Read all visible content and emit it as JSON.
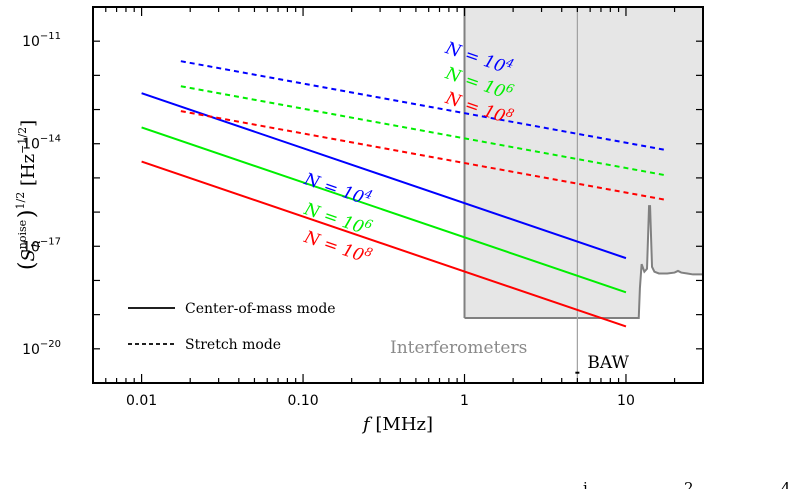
{
  "chart_data": {
    "type": "line",
    "title": "",
    "xlabel": "f [MHz]",
    "ylabel": "(S_h^noise)^1/2 [Hz^-1/2]",
    "x_scale": "log",
    "y_scale": "log",
    "xlim": [
      0.005,
      30
    ],
    "ylim": [
      1e-21,
      1e-10
    ],
    "x_ticks": [
      {
        "value": 0.01,
        "label": "0.01"
      },
      {
        "value": 0.1,
        "label": "0.10"
      },
      {
        "value": 1,
        "label": "1"
      },
      {
        "value": 10,
        "label": "10"
      }
    ],
    "y_ticks": [
      {
        "value": 1e-11,
        "base": "10",
        "exp": "−11"
      },
      {
        "value": 1e-14,
        "base": "10",
        "exp": "−14"
      },
      {
        "value": 1e-17,
        "base": "10",
        "exp": "−17"
      },
      {
        "value": 1e-20,
        "base": "10",
        "exp": "−20"
      }
    ],
    "series": [
      {
        "mode": "center-of-mass",
        "N": "10^4",
        "color": "#0000ff",
        "dash": "solid",
        "x": [
          0.01,
          10
        ],
        "y": [
          3e-13,
          4.5e-18
        ]
      },
      {
        "mode": "center-of-mass",
        "N": "10^6",
        "color": "#00ee00",
        "dash": "solid",
        "x": [
          0.01,
          10
        ],
        "y": [
          3e-14,
          4.5e-19
        ]
      },
      {
        "mode": "center-of-mass",
        "N": "10^8",
        "color": "#ff0000",
        "dash": "solid",
        "x": [
          0.01,
          10
        ],
        "y": [
          3e-15,
          4.5e-20
        ]
      },
      {
        "mode": "stretch",
        "N": "10^4",
        "color": "#0000ff",
        "dash": "dashed",
        "x": [
          0.0175,
          17.5
        ],
        "y": [
          2.6e-12,
          6.6e-15
        ]
      },
      {
        "mode": "stretch",
        "N": "10^6",
        "color": "#00ee00",
        "dash": "dashed",
        "x": [
          0.0175,
          17.5
        ],
        "y": [
          4.8e-13,
          1.2e-15
        ]
      },
      {
        "mode": "stretch",
        "N": "10^8",
        "color": "#ff0000",
        "dash": "dashed",
        "x": [
          0.0175,
          17.5
        ],
        "y": [
          9e-14,
          2.3e-16
        ]
      }
    ],
    "curve_labels": [
      {
        "text": "N = 10",
        "exp": "4",
        "color": "#0000ff",
        "x": 1.2,
        "y": 2.2e-12
      },
      {
        "text": "N = 10",
        "exp": "6",
        "color": "#00ee00",
        "x": 1.2,
        "y": 4e-13
      },
      {
        "text": "N = 10",
        "exp": "8",
        "color": "#ff0000",
        "x": 1.2,
        "y": 7.6e-14
      },
      {
        "text": "N = 10",
        "exp": "4",
        "color": "#0000ff",
        "x": 0.16,
        "y": 3.2e-16
      },
      {
        "text": "N = 10",
        "exp": "6",
        "color": "#00ee00",
        "x": 0.16,
        "y": 4.3e-17
      },
      {
        "text": "N = 10",
        "exp": "8",
        "color": "#ff0000",
        "x": 0.16,
        "y": 6.5e-18
      }
    ],
    "interferometers": {
      "label": "Interferometers",
      "region_x": [
        1,
        30
      ],
      "region_ceiling": 1e-10,
      "region_floor": 8e-20,
      "curve": {
        "color": "#808080",
        "x": [
          1,
          12,
          12.2,
          12.5,
          13,
          13.5,
          13.9,
          14.1,
          14.5,
          15,
          16,
          18,
          20,
          21,
          22,
          24,
          26,
          28,
          30
        ],
        "y": [
          8e-20,
          8e-20,
          6e-19,
          3e-18,
          1.8e-18,
          2.2e-18,
          1.5e-16,
          1.5e-16,
          2.5e-18,
          1.8e-18,
          1.6e-18,
          1.6e-18,
          1.7e-18,
          1.9e-18,
          1.7e-18,
          1.6e-18,
          1.5e-18,
          1.5e-18,
          1.5e-18
        ]
      }
    },
    "baw": {
      "label": "BAW",
      "x": 5,
      "y_marker": 2e-21
    },
    "legend": {
      "placement": "lower-left",
      "entries": [
        {
          "label": "Center-of-mass mode",
          "dash": "solid"
        },
        {
          "label": "Stretch mode",
          "dash": "dashed"
        }
      ]
    },
    "colors": {
      "region_fill": "#e6e6e6",
      "region_edge": "#808080",
      "axis": "#000000"
    },
    "grid": false,
    "cropped_footer_glyphs": [
      "i",
      "2",
      "4"
    ]
  }
}
